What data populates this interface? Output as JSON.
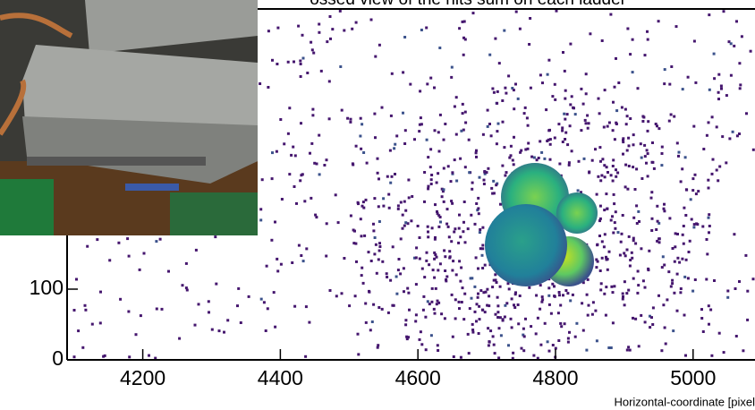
{
  "chart_data": {
    "type": "heatmap",
    "title": "ossed view of the hits sum on each ladder",
    "x_label": "Horizontal-coordinate [pixel",
    "xlim": [
      4090,
      5090
    ],
    "xticks": [
      4200,
      4400,
      4600,
      4800,
      5000
    ],
    "ylim": [
      0,
      500
    ],
    "yticks": [
      0,
      100
    ]
  }
}
